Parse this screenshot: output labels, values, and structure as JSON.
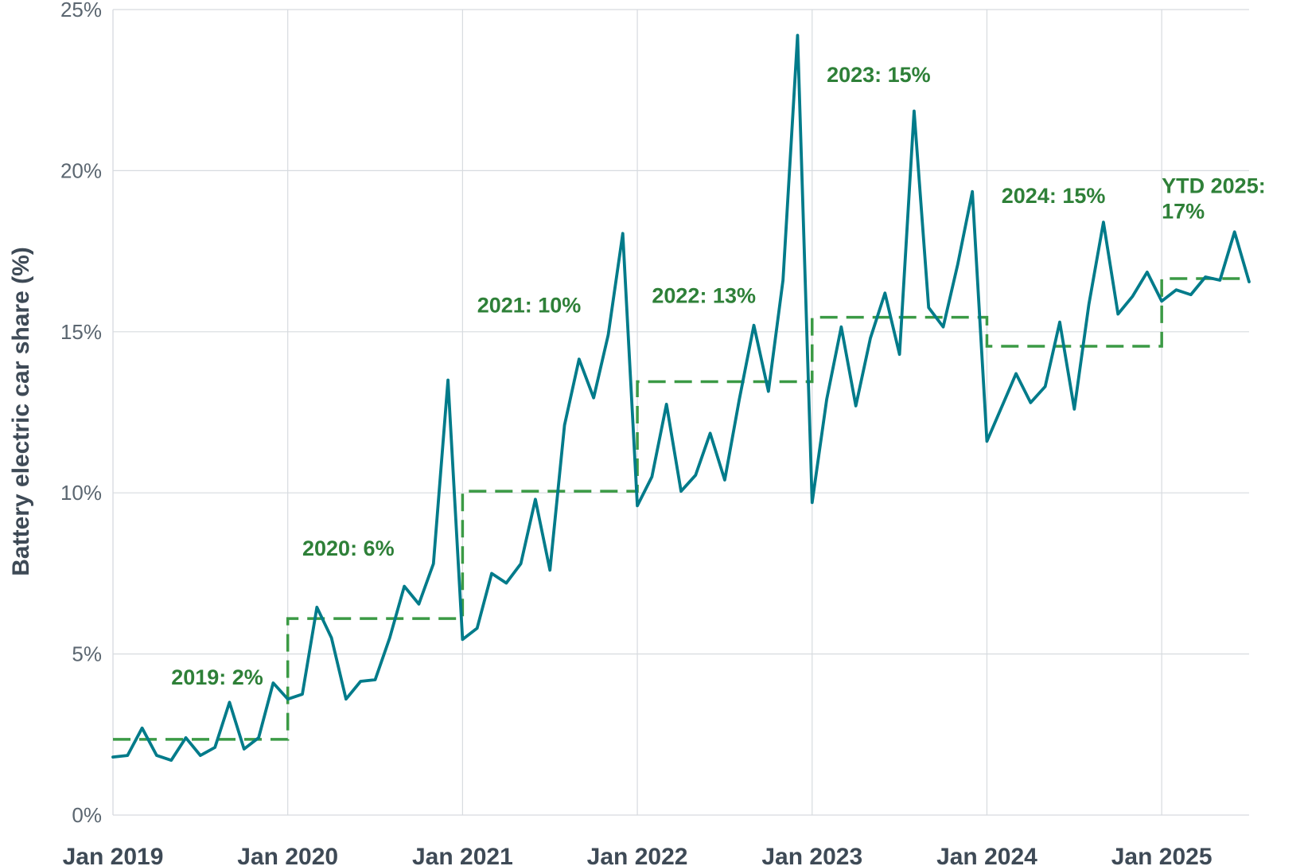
{
  "chart_data": {
    "type": "line",
    "ylabel": "Battery electric car share (%)",
    "xlabel": "",
    "title": "",
    "ylim": [
      0,
      25
    ],
    "yticks": [
      0,
      5,
      10,
      15,
      20,
      25
    ],
    "ytick_labels": [
      "0%",
      "5%",
      "10%",
      "15%",
      "20%",
      "25%"
    ],
    "xlim": [
      "2019-01",
      "2025-07"
    ],
    "xticks": [
      "2019-01",
      "2020-01",
      "2021-01",
      "2022-01",
      "2023-01",
      "2024-01",
      "2025-01"
    ],
    "xtick_labels": [
      "Jan 2019",
      "Jan 2020",
      "Jan 2021",
      "Jan 2022",
      "Jan 2023",
      "Jan 2024",
      "Jan 2025"
    ],
    "grid": true,
    "colors": {
      "monthly": "#007b8a",
      "annual": "#3b9a45",
      "annotation": "#2e8038"
    },
    "series": [
      {
        "style": "solid",
        "x": [
          "2019-01",
          "2019-02",
          "2019-03",
          "2019-04",
          "2019-05",
          "2019-06",
          "2019-07",
          "2019-08",
          "2019-09",
          "2019-10",
          "2019-11",
          "2019-12",
          "2020-01",
          "2020-02",
          "2020-03",
          "2020-04",
          "2020-05",
          "2020-06",
          "2020-07",
          "2020-08",
          "2020-09",
          "2020-10",
          "2020-11",
          "2020-12",
          "2021-01",
          "2021-02",
          "2021-03",
          "2021-04",
          "2021-05",
          "2021-06",
          "2021-07",
          "2021-08",
          "2021-09",
          "2021-10",
          "2021-11",
          "2021-12",
          "2022-01",
          "2022-02",
          "2022-03",
          "2022-04",
          "2022-05",
          "2022-06",
          "2022-07",
          "2022-08",
          "2022-09",
          "2022-10",
          "2022-11",
          "2022-12",
          "2023-01",
          "2023-02",
          "2023-03",
          "2023-04",
          "2023-05",
          "2023-06",
          "2023-07",
          "2023-08",
          "2023-09",
          "2023-10",
          "2023-11",
          "2023-12",
          "2024-01",
          "2024-02",
          "2024-03",
          "2024-04",
          "2024-05",
          "2024-06",
          "2024-07",
          "2024-08",
          "2024-09",
          "2024-10",
          "2024-11",
          "2024-12",
          "2025-01",
          "2025-02",
          "2025-03",
          "2025-04",
          "2025-05",
          "2025-06",
          "2025-07"
        ],
        "values": [
          1.8,
          1.85,
          2.7,
          1.85,
          1.7,
          2.4,
          1.85,
          2.1,
          3.5,
          2.05,
          2.4,
          4.1,
          3.6,
          3.75,
          6.45,
          5.5,
          3.6,
          4.15,
          4.2,
          5.5,
          7.1,
          6.55,
          7.8,
          13.5,
          5.45,
          5.8,
          7.5,
          7.2,
          7.8,
          9.8,
          7.6,
          12.1,
          14.15,
          12.95,
          14.9,
          18.05,
          9.6,
          10.5,
          12.75,
          10.05,
          10.55,
          11.85,
          10.4,
          12.9,
          15.2,
          13.15,
          16.6,
          24.2,
          9.7,
          12.9,
          15.15,
          12.7,
          14.8,
          16.2,
          14.3,
          21.85,
          15.75,
          15.15,
          17.1,
          19.35,
          11.6,
          12.65,
          13.7,
          12.8,
          13.3,
          15.3,
          12.6,
          15.85,
          18.4,
          15.55,
          16.1,
          16.85,
          15.95,
          16.3,
          16.15,
          16.7,
          16.6,
          18.1,
          16.55
        ]
      },
      {
        "style": "dashed",
        "steps": [
          {
            "from": "2019-01",
            "to": "2020-01",
            "value": 2.35
          },
          {
            "from": "2020-01",
            "to": "2021-01",
            "value": 6.1
          },
          {
            "from": "2021-01",
            "to": "2022-01",
            "value": 10.05
          },
          {
            "from": "2022-01",
            "to": "2023-01",
            "value": 13.45
          },
          {
            "from": "2023-01",
            "to": "2024-01",
            "value": 15.45
          },
          {
            "from": "2024-01",
            "to": "2025-01",
            "value": 14.55
          },
          {
            "from": "2025-01",
            "to": "2025-07",
            "value": 16.65
          }
        ]
      }
    ],
    "annotations": [
      {
        "lines": [
          "2019: 2%"
        ],
        "x": "2019-05",
        "y": 4.05
      },
      {
        "lines": [
          "2020: 6%"
        ],
        "x": "2020-02",
        "y": 8.05
      },
      {
        "lines": [
          "2021: 10%"
        ],
        "x": "2021-02",
        "y": 15.6
      },
      {
        "lines": [
          "2022: 13%"
        ],
        "x": "2022-02",
        "y": 15.9
      },
      {
        "lines": [
          "2023: 15%"
        ],
        "x": "2023-02",
        "y": 22.75
      },
      {
        "lines": [
          "2024: 15%"
        ],
        "x": "2024-02",
        "y": 19.0
      },
      {
        "lines": [
          "YTD 2025:",
          "17%"
        ],
        "x": "2025-01",
        "y": 19.3
      }
    ]
  }
}
